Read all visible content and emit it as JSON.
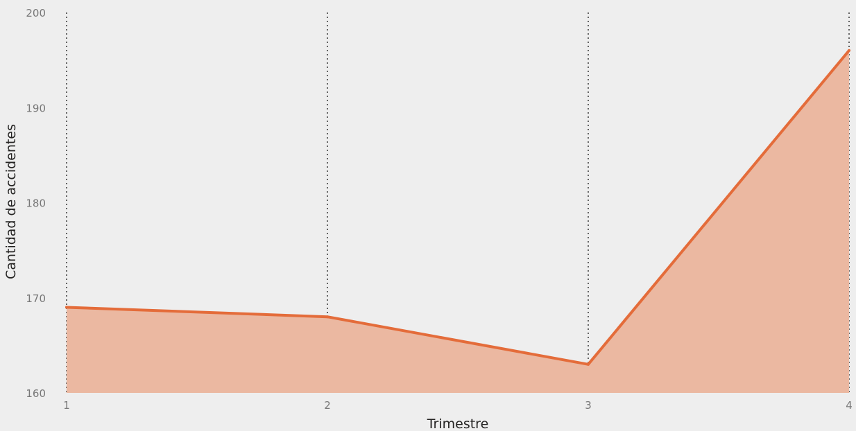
{
  "chart_data": {
    "type": "area",
    "x": [
      1,
      2,
      3,
      4
    ],
    "x_tick_labels": [
      "1",
      "2",
      "3",
      "4"
    ],
    "series": [
      {
        "values": [
          169,
          168,
          163,
          196
        ]
      }
    ],
    "xlabel": "Trimestre",
    "ylabel": "Cantidad de accidentes",
    "ylim": [
      160,
      200
    ],
    "y_ticks": [
      160,
      170,
      180,
      190,
      200
    ],
    "y_tick_labels": [
      "160",
      "170",
      "180",
      "190",
      "200"
    ],
    "grid": "vertical dotted at each x category",
    "colors": {
      "line": "#e46c3a",
      "fill": "#ebb8a1",
      "grid": "#333333",
      "background": "#eeeeee"
    }
  }
}
